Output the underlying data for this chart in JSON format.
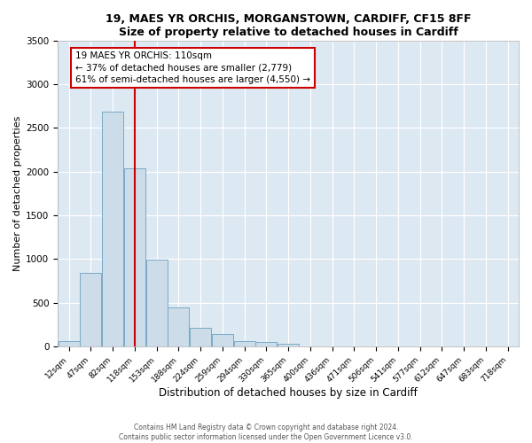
{
  "title1": "19, MAES YR ORCHIS, MORGANSTOWN, CARDIFF, CF15 8FF",
  "title2": "Size of property relative to detached houses in Cardiff",
  "xlabel": "Distribution of detached houses by size in Cardiff",
  "ylabel": "Number of detached properties",
  "bar_color": "#ccdce8",
  "bar_edge_color": "#7aaac8",
  "bin_labels": [
    "12sqm",
    "47sqm",
    "82sqm",
    "118sqm",
    "153sqm",
    "188sqm",
    "224sqm",
    "259sqm",
    "294sqm",
    "330sqm",
    "365sqm",
    "400sqm",
    "436sqm",
    "471sqm",
    "506sqm",
    "541sqm",
    "577sqm",
    "612sqm",
    "647sqm",
    "683sqm",
    "718sqm"
  ],
  "bar_heights": [
    60,
    840,
    2680,
    2040,
    990,
    450,
    210,
    140,
    60,
    50,
    30,
    0,
    0,
    0,
    0,
    0,
    0,
    0,
    0,
    0,
    0
  ],
  "vline_x_index": 3,
  "vline_color": "#cc0000",
  "ylim_max": 3500,
  "yticks": [
    0,
    500,
    1000,
    1500,
    2000,
    2500,
    3000,
    3500
  ],
  "annotation_line1": "19 MAES YR ORCHIS: 110sqm",
  "annotation_line2": "← 37% of detached houses are smaller (2,779)",
  "annotation_line3": "61% of semi-detached houses are larger (4,550) →",
  "annotation_border_color": "#cc0000",
  "footer1": "Contains HM Land Registry data © Crown copyright and database right 2024.",
  "footer2": "Contains public sector information licensed under the Open Government Licence v3.0.",
  "bg_color": "#dce8f2",
  "grid_color": "#ffffff",
  "title_fontsize": 9,
  "xlabel_fontsize": 8.5,
  "ylabel_fontsize": 8,
  "tick_fontsize": 6.5,
  "annotation_fontsize": 7.5,
  "footer_fontsize": 5.5
}
